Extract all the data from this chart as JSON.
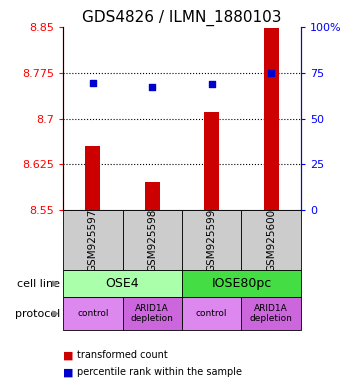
{
  "title": "GDS4826 / ILMN_1880103",
  "samples": [
    "GSM925597",
    "GSM925598",
    "GSM925599",
    "GSM925600"
  ],
  "red_values": [
    8.655,
    8.597,
    8.71,
    8.848
  ],
  "blue_values": [
    8.758,
    8.752,
    8.757,
    8.775
  ],
  "ylim_left": [
    8.55,
    8.85
  ],
  "ylim_right": [
    0,
    100
  ],
  "yticks_left": [
    8.55,
    8.625,
    8.7,
    8.775,
    8.85
  ],
  "yticks_right": [
    0,
    25,
    50,
    75,
    100
  ],
  "ytick_labels_left": [
    "8.55",
    "8.625",
    "8.7",
    "8.775",
    "8.85"
  ],
  "ytick_labels_right": [
    "0",
    "25",
    "50",
    "75",
    "100%"
  ],
  "bar_color": "#cc0000",
  "dot_color": "#0000cc",
  "bar_width": 0.25,
  "cell_line_labels": [
    "OSE4",
    "IOSE80pc"
  ],
  "cell_line_colors": [
    "#aaffaa",
    "#44dd44"
  ],
  "cell_line_spans": [
    [
      0,
      1
    ],
    [
      2,
      3
    ]
  ],
  "protocol_labels": [
    "control",
    "ARID1A\ndepletion",
    "control",
    "ARID1A\ndepletion"
  ],
  "protocol_colors": [
    "#dd88ee",
    "#cc66dd",
    "#dd88ee",
    "#cc66dd"
  ],
  "legend_red": "transformed count",
  "legend_blue": "percentile rank within the sample",
  "left_label_cell": "cell line",
  "left_label_protocol": "protocol",
  "title_fontsize": 11,
  "tick_fontsize": 8,
  "sample_fontsize": 7.5,
  "label_fontsize": 9,
  "sample_box_color": "#cccccc",
  "grid_color": "#000000",
  "grid_linestyle": ":",
  "grid_linewidth": 0.8
}
